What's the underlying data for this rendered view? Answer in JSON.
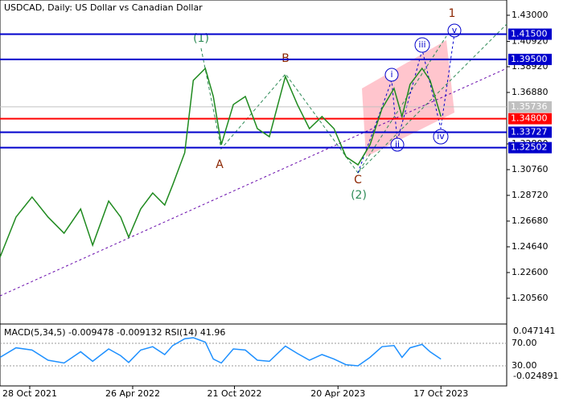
{
  "chart_data": {
    "type": "line",
    "title": "USDCAD, Daily:  US Dollar vs Canadian Dollar",
    "x": [
      -52,
      -24,
      4,
      32,
      60,
      89,
      110,
      138,
      159,
      173,
      194,
      215,
      236,
      250,
      271,
      286,
      307,
      321,
      335,
      356,
      377,
      398,
      419,
      447,
      468,
      489,
      511,
      532,
      553,
      574,
      595,
      616,
      637,
      651,
      665,
      686,
      700,
      719
    ],
    "series": [
      {
        "name": "USDCAD",
        "color": "#1f8a1f",
        "values": [
          1.2381,
          1.27,
          1.2859,
          1.27,
          1.2572,
          1.2764,
          1.2477,
          1.2827,
          1.27,
          1.254,
          1.2764,
          1.2891,
          1.2795,
          1.2955,
          1.321,
          1.3784,
          1.3879,
          1.3656,
          1.3274,
          1.3592,
          1.3656,
          1.3401,
          1.3337,
          1.3815,
          1.3592,
          1.3401,
          1.3497,
          1.3401,
          1.3178,
          1.3114,
          1.3274,
          1.356,
          1.372,
          1.3497,
          1.3752,
          1.3879,
          1.3784,
          1.3497
        ]
      },
      {
        "name": "RSI(14)",
        "color": "#1e90ff",
        "axis": "y2",
        "values": [
          45,
          62,
          58,
          40,
          35,
          55,
          38,
          60,
          48,
          36,
          58,
          64,
          50,
          66,
          78,
          80,
          72,
          42,
          35,
          60,
          58,
          40,
          38,
          65,
          52,
          40,
          50,
          42,
          32,
          30,
          45,
          64,
          66,
          45,
          62,
          68,
          55,
          41.96
        ]
      }
    ],
    "xlim": [
      -52,
      834
    ],
    "xticks": [
      {
        "value": 0,
        "label": "28 Oct 2021"
      },
      {
        "value": 180,
        "label": "26 Apr 2022"
      },
      {
        "value": 358,
        "label": "21 Oct 2022"
      },
      {
        "value": 539,
        "label": "20 Apr 2023"
      },
      {
        "value": 719,
        "label": "17 Oct 2023"
      }
    ],
    "ylim": [
      1.1871,
      1.4421
    ],
    "yticks": [
      {
        "value": 1.43,
        "label": "1.43000"
      },
      {
        "value": 1.4092,
        "label": "1.40920"
      },
      {
        "value": 1.3892,
        "label": "1.38920"
      },
      {
        "value": 1.3688,
        "label": "1.36880"
      },
      {
        "value": 1.328,
        "label": "1.32800"
      },
      {
        "value": 1.3076,
        "label": "1.30760"
      },
      {
        "value": 1.2872,
        "label": "1.28720"
      },
      {
        "value": 1.2668,
        "label": "1.26680"
      },
      {
        "value": 1.2464,
        "label": "1.24640"
      },
      {
        "value": 1.226,
        "label": "1.22600"
      },
      {
        "value": 1.2056,
        "label": "1.20560"
      }
    ],
    "levels": [
      {
        "value": 1.415,
        "label": "1.41500",
        "color": "#0000cc"
      },
      {
        "value": 1.395,
        "label": "1.39500",
        "color": "#0000cc"
      },
      {
        "value": 1.35736,
        "label": "1.35736",
        "color": "#c0c0c0"
      },
      {
        "value": 1.348,
        "label": "1.34800",
        "color": "#ff0000"
      },
      {
        "value": 1.33727,
        "label": "1.33727",
        "color": "#0000cc"
      },
      {
        "value": 1.32502,
        "label": "1.32502",
        "color": "#0000cc"
      }
    ],
    "y2lim": [
      -5.7,
      101.4
    ],
    "y2ticks": [
      {
        "value": 70,
        "label": "70.00"
      },
      {
        "value": 30,
        "label": "30.00"
      }
    ],
    "indicator_label": "MACD(5,34,5) -0.009478 -0.009132 RSI(14) 41.96",
    "indicator_scale": [
      "0.047141",
      "-0.024891"
    ],
    "annotations": [
      "(1)",
      "A",
      "B",
      "C",
      "(2)",
      "1",
      "i",
      "ii",
      "iii",
      "iv",
      "v"
    ]
  }
}
